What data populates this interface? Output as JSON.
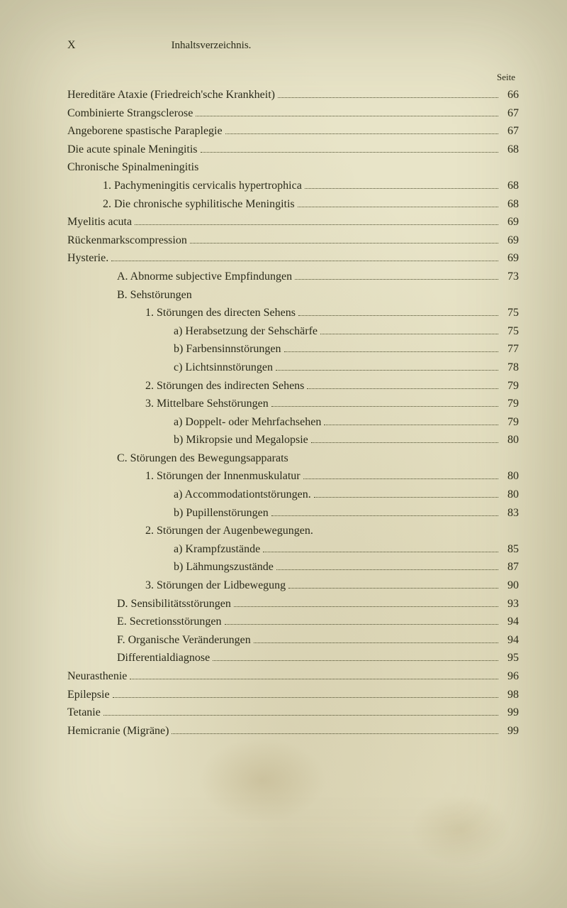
{
  "header": {
    "roman": "X",
    "title": "Inhaltsverzeichnis."
  },
  "seite_label": "Seite",
  "entries": [
    {
      "indent": 0,
      "text": "Hereditäre Ataxie (Friedreich'sche Krankheit)",
      "page": "66"
    },
    {
      "indent": 0,
      "text": "Combinierte Strangsclerose",
      "page": "67"
    },
    {
      "indent": 0,
      "text": "Angeborene spastische Paraplegie",
      "page": "67"
    },
    {
      "indent": 0,
      "text": "Die acute spinale Meningitis",
      "page": "68"
    },
    {
      "indent": 0,
      "text": "Chronische Spinalmeningitis",
      "page": ""
    },
    {
      "indent": 1,
      "text": "1. Pachymeningitis cervicalis hypertrophica",
      "page": "68"
    },
    {
      "indent": 1,
      "text": "2. Die chronische syphilitische Meningitis",
      "page": "68"
    },
    {
      "indent": 0,
      "text": "Myelitis acuta",
      "page": "69"
    },
    {
      "indent": 0,
      "text": "Rückenmarkscompression",
      "page": "69"
    },
    {
      "indent": 0,
      "text": "Hysterie.",
      "page": "69"
    },
    {
      "indent": 2,
      "text": "A. Abnorme subjective Empfindungen",
      "page": "73"
    },
    {
      "indent": 2,
      "text": "B. Sehstörungen",
      "page": ""
    },
    {
      "indent": 3,
      "text": "1. Störungen des directen Sehens",
      "page": "75"
    },
    {
      "indent": 4,
      "text": "a) Herabsetzung der Sehschärfe",
      "page": "75"
    },
    {
      "indent": 4,
      "text": "b) Farbensinnstörungen",
      "page": "77"
    },
    {
      "indent": 4,
      "text": "c) Lichtsinnstörungen",
      "page": "78"
    },
    {
      "indent": 3,
      "text": "2. Störungen des indirecten Sehens",
      "page": "79"
    },
    {
      "indent": 3,
      "text": "3. Mittelbare Sehstörungen",
      "page": "79"
    },
    {
      "indent": 4,
      "text": "a) Doppelt- oder Mehrfachsehen",
      "page": "79"
    },
    {
      "indent": 4,
      "text": "b) Mikropsie und Megalopsie",
      "page": "80"
    },
    {
      "indent": 2,
      "text": "C. Störungen des Bewegungsapparats",
      "page": ""
    },
    {
      "indent": 3,
      "text": "1. Störungen der Innenmuskulatur",
      "page": "80"
    },
    {
      "indent": 4,
      "text": "a) Accommodationtstörungen.",
      "page": "80"
    },
    {
      "indent": 4,
      "text": "b) Pupillenstörungen",
      "page": "83"
    },
    {
      "indent": 3,
      "text": "2. Störungen der Augenbewegungen.",
      "page": ""
    },
    {
      "indent": 4,
      "text": "a) Krampfzustände",
      "page": "85"
    },
    {
      "indent": 4,
      "text": "b) Lähmungszustände",
      "page": "87"
    },
    {
      "indent": 3,
      "text": "3. Störungen der Lidbewegung",
      "page": "90"
    },
    {
      "indent": 2,
      "text": "D. Sensibilitätsstörungen",
      "page": "93"
    },
    {
      "indent": 2,
      "text": "E. Secretionsstörungen",
      "page": "94"
    },
    {
      "indent": 2,
      "text": "F. Organische Veränderungen",
      "page": "94"
    },
    {
      "indent": 2,
      "text": "Differentialdiagnose",
      "page": "95"
    },
    {
      "indent": 0,
      "text": "Neurasthenie",
      "page": "96"
    },
    {
      "indent": 0,
      "text": "Epilepsie",
      "page": "98"
    },
    {
      "indent": 0,
      "text": "Tetanie",
      "page": "99"
    },
    {
      "indent": 0,
      "text": "Hemicranie (Migräne)",
      "page": "99"
    }
  ],
  "colors": {
    "background": "#e8e4c8",
    "text": "#2a2a1a"
  }
}
